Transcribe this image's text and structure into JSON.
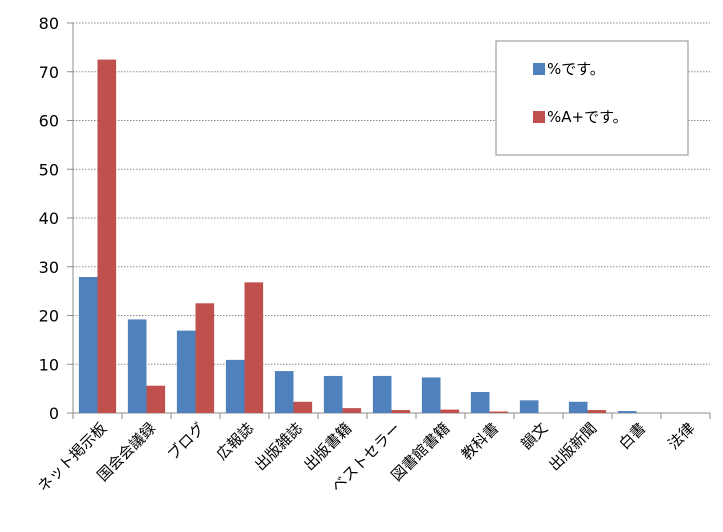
{
  "chart_data": {
    "type": "bar",
    "categories": [
      "ネット掲示板",
      "国会会議録",
      "ブログ",
      "広報誌",
      "出版雑誌",
      "出版書籍",
      "ベストセラー",
      "図書館書籍",
      "教科書",
      "韻文",
      "出版新聞",
      "白書",
      "法律"
    ],
    "series": [
      {
        "name": "%です。",
        "color": "#4F81BD",
        "values": [
          27.9,
          19.2,
          16.9,
          10.9,
          8.6,
          7.6,
          7.6,
          7.3,
          4.3,
          2.6,
          2.3,
          0.4,
          0
        ]
      },
      {
        "name": "%A+です。",
        "color": "#C0504D",
        "values": [
          72.5,
          5.6,
          22.5,
          26.8,
          2.3,
          1.0,
          0.6,
          0.7,
          0.3,
          0,
          0.6,
          0,
          0
        ]
      }
    ],
    "ylim": [
      0,
      80
    ],
    "yticks": [
      0,
      10,
      20,
      30,
      40,
      50,
      60,
      70,
      80
    ],
    "grid": true,
    "legend_position": "top-right",
    "title": "",
    "xlabel": "",
    "ylabel": ""
  }
}
